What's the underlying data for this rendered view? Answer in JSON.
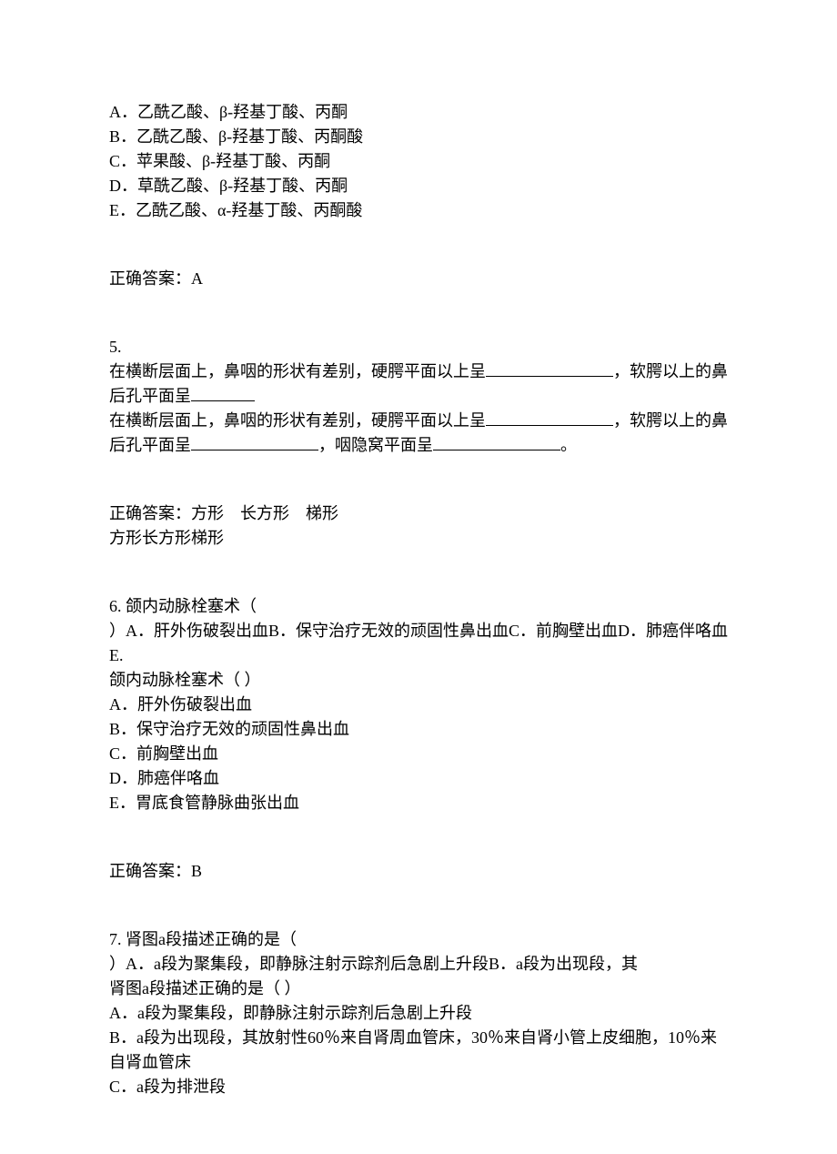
{
  "q4": {
    "options": {
      "a": "A．乙酰乙酸、β-羟基丁酸、丙酮",
      "b": "B．乙酰乙酸、β-羟基丁酸、丙酮酸",
      "c": "C．苹果酸、β-羟基丁酸、丙酮",
      "d": "D．草酰乙酸、β-羟基丁酸、丙酮",
      "e": "E．乙酰乙酸、α-羟基丁酸、丙酮酸"
    },
    "answer_label": "正确答案：A"
  },
  "q5": {
    "number": "5.",
    "line1_part1": "在横断层面上，鼻咽的形状有差别，硬腭平面以上呈",
    "line1_part2": "，软腭以上的鼻后孔平面呈",
    "line2_part1": "在横断层面上，鼻咽的形状有差别，硬腭平面以上呈",
    "line2_part2": "，软腭以上的鼻后孔平面呈",
    "line2_part3": "，咽隐窝平面呈",
    "line2_part4": "。",
    "answer_label": "正确答案：方形　长方形　梯形",
    "answer_line2": "方形长方形梯形"
  },
  "q6": {
    "number": "6.",
    "stem_inline": "颌内动脉栓塞术（",
    "stem_cont": "）A．肝外伤破裂出血B．保守治疗无效的顽固性鼻出血C．前胸壁出血D．肺癌伴咯血E.",
    "stem_repeat": "颌内动脉栓塞术（ ）",
    "options": {
      "a": "A．肝外伤破裂出血",
      "b": "B．保守治疗无效的顽固性鼻出血",
      "c": "C．前胸壁出血",
      "d": "D．肺癌伴咯血",
      "e": "E．胃底食管静脉曲张出血"
    },
    "answer_label": "正确答案：B"
  },
  "q7": {
    "number": "7.",
    "stem_inline": "肾图a段描述正确的是（",
    "stem_cont": "）A．a段为聚集段，即静脉注射示踪剂后急剧上升段B．a段为出现段，其",
    "stem_repeat": "肾图a段描述正确的是（ ）",
    "options": {
      "a": "A．a段为聚集段，即静脉注射示踪剂后急剧上升段",
      "b": "B．a段为出现段，其放射性60％来自肾周血管床，30％来自肾小管上皮细胞，10％来自肾血管床",
      "c": "C．a段为排泄段"
    }
  }
}
